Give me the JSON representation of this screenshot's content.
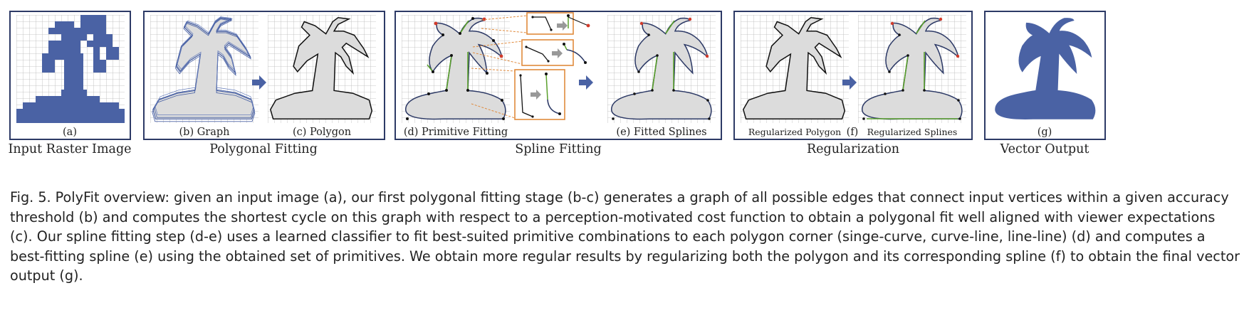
{
  "figure": {
    "panels": {
      "a": "(a)",
      "b": "(b)  Graph",
      "c": "(c)  Polygon",
      "d": "(d)  Primitive Fitting",
      "e": "(e)  Fitted Splines",
      "f_left": "Regularized Polygon",
      "f": "(f)",
      "f_right": "Regularized Splines",
      "g": "(g)"
    },
    "stages": {
      "input": "Input Raster Image",
      "polygonal": "Polygonal Fitting",
      "spline": "Spline Fitting",
      "regularization": "Regularization",
      "vector": "Vector Output"
    },
    "colors": {
      "frame": "#2d3a66",
      "accent_blue": "#4a62a4",
      "fill_gray": "#dcdcdc",
      "grid": "#b8b8b8",
      "orange": "#e08a3c",
      "green": "#5aa02c",
      "red": "#d23a2a"
    }
  },
  "caption": {
    "label": "Fig. 5.",
    "text": "PolyFit overview: given an input image (a), our first polygonal fitting stage (b-c) generates a graph of all possible edges that connect input vertices within a given accuracy threshold (b) and computes the shortest cycle on this graph with respect to a perception-motivated cost function to obtain a polygonal fit well aligned with viewer expectations (c). Our spline fitting step (d-e) uses a learned classifier to fit best-suited primitive combinations to each polygon corner (singe-curve, curve-line, line-line) (d) and computes a best-fitting spline (e) using the obtained set of primitives. We obtain more regular results by regularizing both the polygon and its corresponding spline (f) to obtain the final vector output (g)."
  }
}
